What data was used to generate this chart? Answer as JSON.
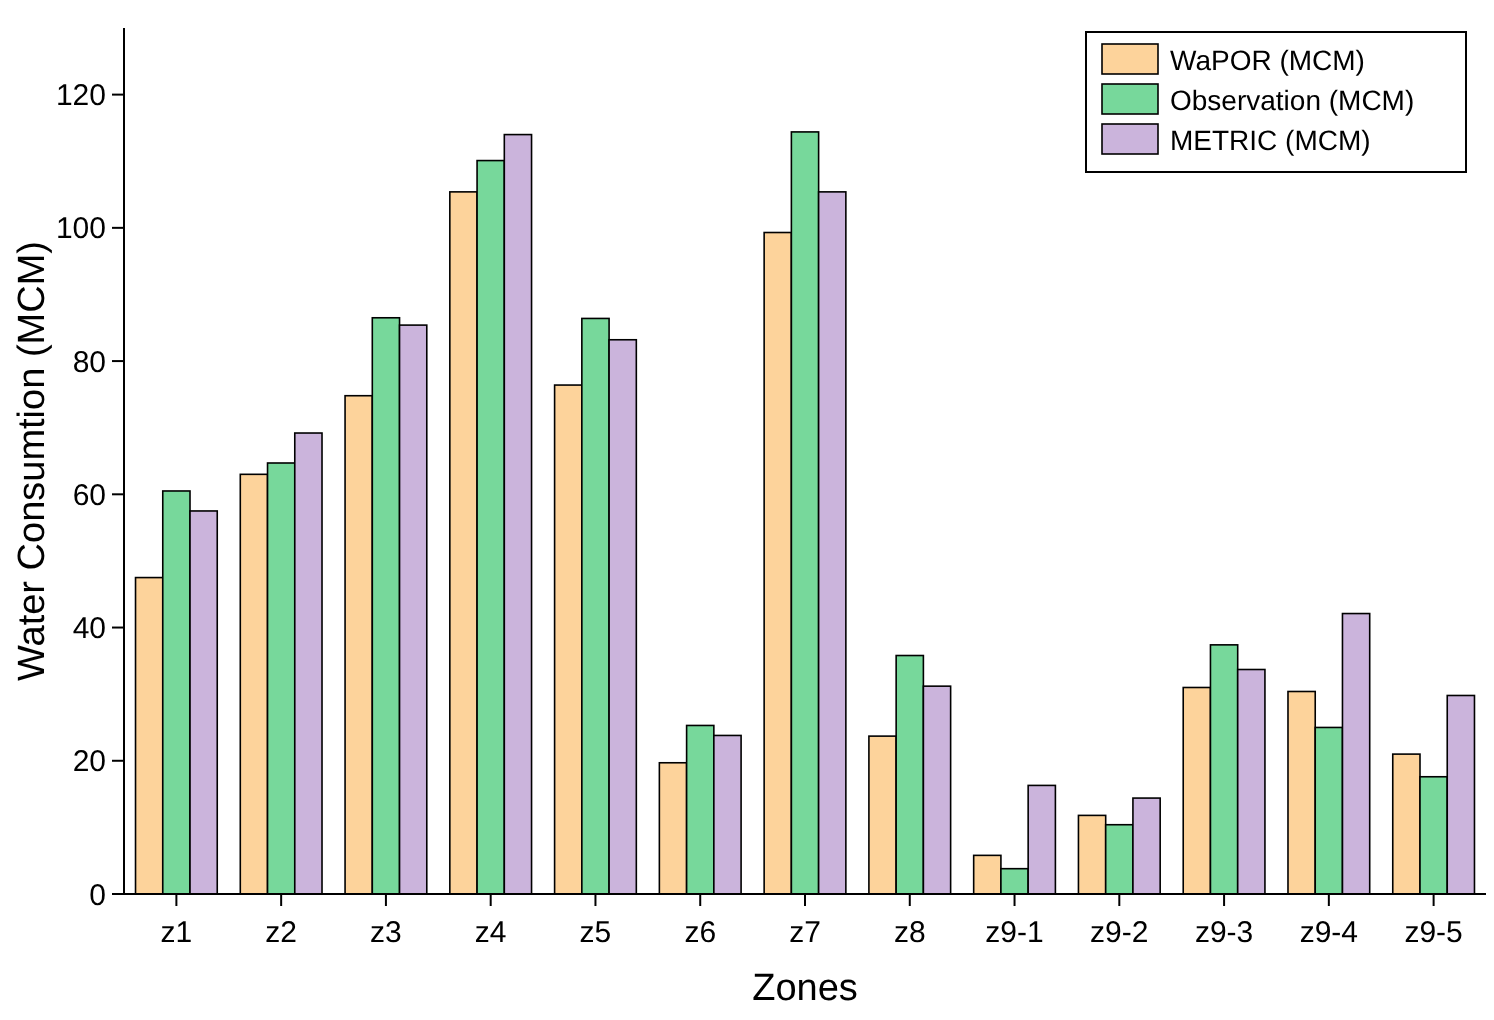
{
  "chart_data": {
    "type": "bar",
    "xlabel": "Zones",
    "ylabel": "Water Consumtion (MCM)",
    "categories": [
      "z1",
      "z2",
      "z3",
      "z4",
      "z5",
      "z6",
      "z7",
      "z8",
      "z9-1",
      "z9-2",
      "z9-3",
      "z9-4",
      "z9-5"
    ],
    "series": [
      {
        "name": "WaPOR (MCM)",
        "color": "#fdd39b",
        "values": [
          47.5,
          63,
          74.8,
          105.4,
          76.4,
          19.7,
          99.3,
          23.7,
          5.8,
          11.8,
          31,
          30.4,
          21
        ]
      },
      {
        "name": "Observation (MCM)",
        "color": "#77d89b",
        "values": [
          60.5,
          64.7,
          86.5,
          110.1,
          86.4,
          25.3,
          114.4,
          35.8,
          3.8,
          10.4,
          37.4,
          25,
          17.6
        ]
      },
      {
        "name": "METRIC (MCM)",
        "color": "#cbb4dc",
        "values": [
          57.5,
          69.2,
          85.4,
          114,
          83.2,
          23.8,
          105.4,
          31.2,
          16.3,
          14.4,
          33.7,
          42.1,
          29.8
        ]
      }
    ],
    "ylim": [
      0,
      130
    ],
    "yticks": [
      0,
      20,
      40,
      60,
      80,
      100,
      120
    ],
    "grid": false,
    "legend": "top right"
  }
}
